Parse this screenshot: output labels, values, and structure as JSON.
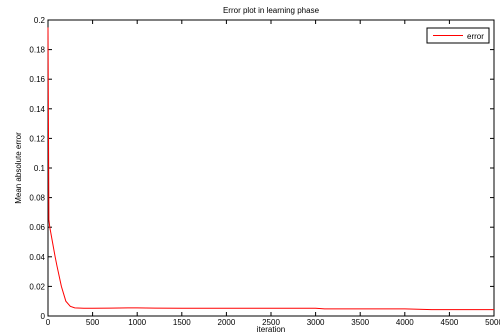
{
  "chart_data": {
    "type": "line",
    "title": "Error plot in learning phase",
    "xlabel": "iteration",
    "ylabel": "Mean absolute error",
    "xlim": [
      0,
      5000
    ],
    "ylim": [
      0,
      0.2
    ],
    "x_ticks": [
      "0",
      "500",
      "1000",
      "1500",
      "2000",
      "2500",
      "3000",
      "3500",
      "4000",
      "4500",
      "5000"
    ],
    "y_ticks": [
      "0",
      "0.02",
      "0.04",
      "0.06",
      "0.08",
      "0.1",
      "0.12",
      "0.14",
      "0.16",
      "0.18",
      "0.2"
    ],
    "x_tick_values": [
      0,
      500,
      1000,
      1500,
      2000,
      2500,
      3000,
      3500,
      4000,
      4500,
      5000
    ],
    "y_tick_values": [
      0,
      0.02,
      0.04,
      0.06,
      0.08,
      0.1,
      0.12,
      0.14,
      0.16,
      0.18,
      0.2
    ],
    "grid": false,
    "legend_position": "top-right",
    "series": [
      {
        "name": "error",
        "color": "#ff0000",
        "x": [
          0,
          5,
          10,
          20,
          50,
          80,
          100,
          150,
          200,
          250,
          300,
          400,
          500,
          700,
          900,
          1000,
          1200,
          1500,
          2000,
          2500,
          3000,
          3100,
          3500,
          4000,
          4300,
          4500,
          5000
        ],
        "y": [
          0.195,
          0.13,
          0.065,
          0.06,
          0.05,
          0.04,
          0.034,
          0.02,
          0.01,
          0.0065,
          0.0055,
          0.0052,
          0.0052,
          0.0053,
          0.0055,
          0.0055,
          0.0053,
          0.0052,
          0.0052,
          0.0052,
          0.0052,
          0.0048,
          0.0048,
          0.0048,
          0.0043,
          0.0043,
          0.0043
        ]
      }
    ]
  }
}
